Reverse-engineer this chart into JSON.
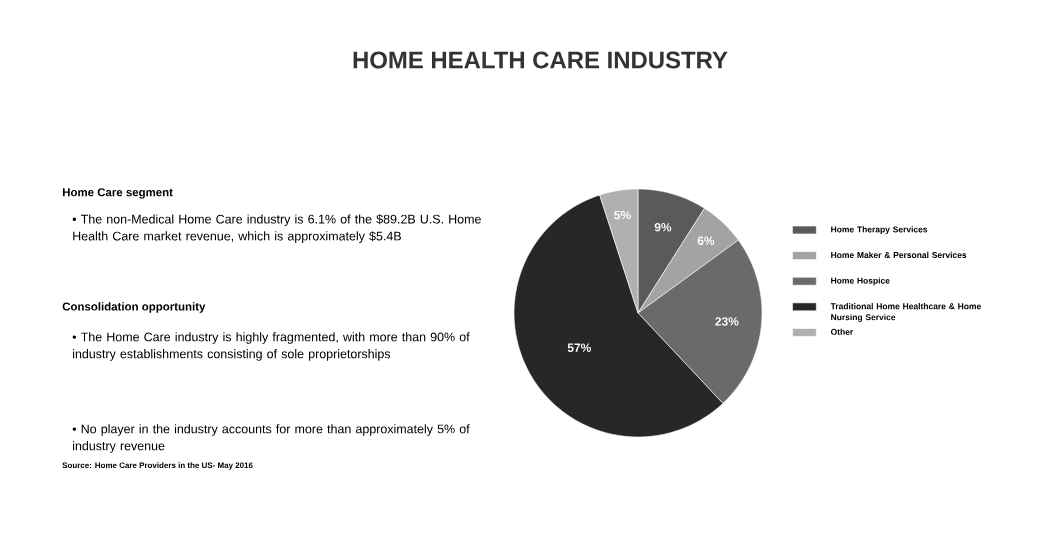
{
  "chart_data": {
    "type": "pie",
    "title": "HOME HEALTH CARE INDUSTRY",
    "categories": [
      "Home Therapy Services",
      "Home Maker & Personal Services",
      "Home Hospice",
      "Traditional Home Healthcare & Home Nursing Service",
      "Other"
    ],
    "values": [
      9,
      6,
      23,
      57,
      5
    ],
    "colors": [
      "#5a5a5a",
      "#a3a3a3",
      "#6a6a6a",
      "#272727",
      "#b0b0b0"
    ],
    "value_labels": [
      "9%",
      "6%",
      "23%",
      "57%",
      "5%"
    ],
    "legend": "right",
    "annotations": [
      "Home Care segment",
      "• The non-Medical Home Care industry is 6.1% of the $89.2B U.S. Home Health Care market revenue, which is approximately $5.4B",
      "Consolidation opportunity",
      "• The Home Care industry is highly fragmented, with more than 90% of industry establishments consisting of sole proprietorships",
      "• No player in the industry accounts for more than approximately 5% of industry revenue",
      "Source: Home Care Providers in the US- May 2016"
    ]
  }
}
